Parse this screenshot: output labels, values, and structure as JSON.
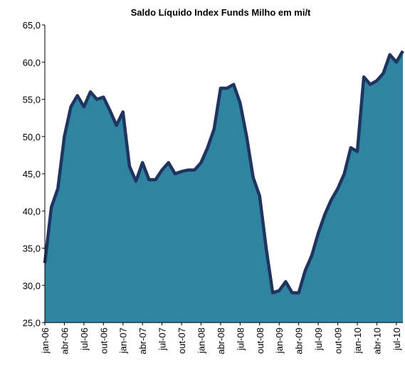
{
  "chart_data": {
    "type": "area",
    "title": "Saldo Líquido Index Funds Milho em mi/t",
    "categories": [
      "jan-06",
      null,
      null,
      "abr-06",
      null,
      null,
      "jul-06",
      null,
      null,
      "out-06",
      null,
      null,
      "jan-07",
      null,
      null,
      "abr-07",
      null,
      null,
      "jul-07",
      null,
      null,
      "out-07",
      null,
      null,
      "jan-08",
      null,
      null,
      "abr-08",
      null,
      null,
      "jul-08",
      null,
      null,
      "out-08",
      null,
      null,
      "jan-09",
      null,
      null,
      "abr-09",
      null,
      null,
      "jul-09",
      null,
      null,
      "out-09",
      null,
      null,
      "jan-10",
      null,
      null,
      "abr-10",
      null,
      null,
      "jul-10",
      null
    ],
    "values": [
      33,
      40.5,
      43,
      50,
      54,
      55.5,
      54,
      56,
      55,
      55.3,
      53.5,
      51.5,
      53.3,
      46,
      44,
      46.5,
      44.2,
      44.2,
      45.5,
      46.5,
      45,
      45.3,
      45.5,
      45.5,
      46.5,
      48.5,
      51,
      56.5,
      56.5,
      57,
      54.5,
      50,
      44.5,
      42,
      35,
      29,
      29.3,
      30.5,
      29,
      29,
      32,
      34,
      37,
      39.5,
      41.5,
      43,
      45,
      48.5,
      48,
      58,
      57,
      57.5,
      58.5,
      61,
      60,
      61.5
    ],
    "color": "#2f85a0",
    "line_color": "#1f3560",
    "ylim": [
      25,
      65
    ],
    "yticks": [
      {
        "value": 25,
        "label": "25,0"
      },
      {
        "value": 30,
        "label": "30,0"
      },
      {
        "value": 35,
        "label": "35,0"
      },
      {
        "value": 40,
        "label": "40,0"
      },
      {
        "value": 45,
        "label": "45,0"
      },
      {
        "value": 50,
        "label": "50,0"
      },
      {
        "value": 55,
        "label": "55,0"
      },
      {
        "value": 60,
        "label": "60,0"
      },
      {
        "value": 65,
        "label": "65,0"
      }
    ],
    "grid": false
  }
}
